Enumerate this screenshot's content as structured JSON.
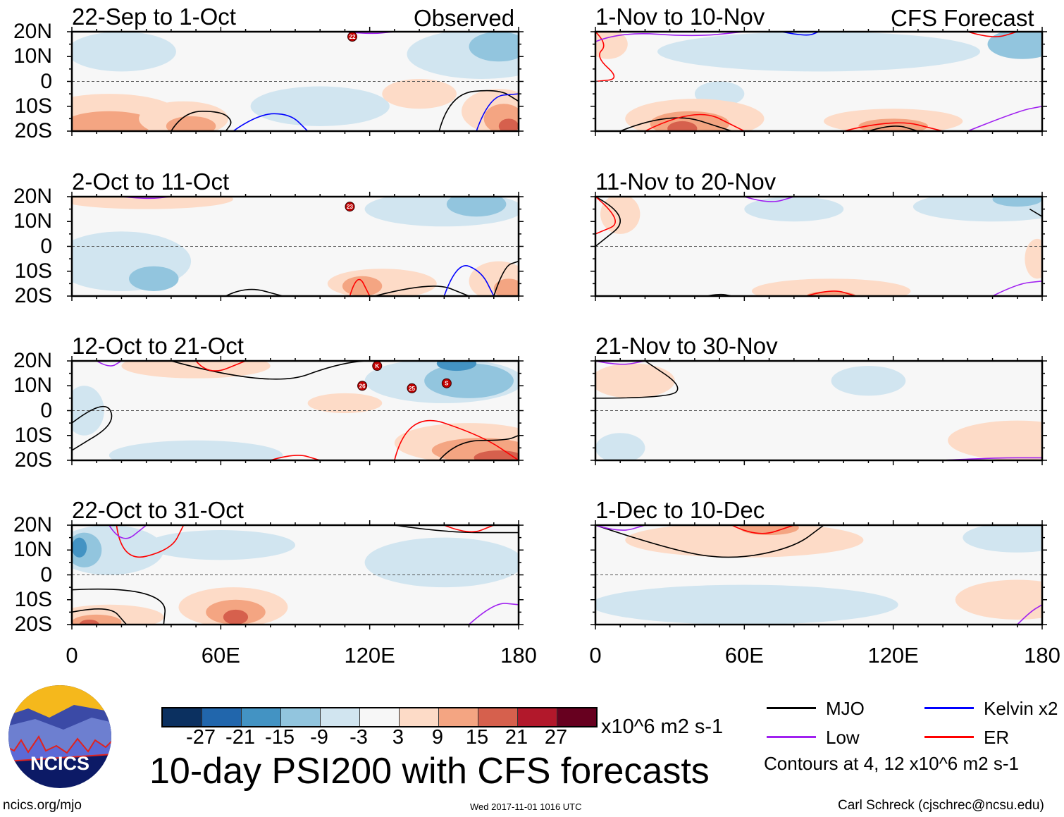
{
  "chart_data": {
    "type": "heatmap",
    "title": "10-day PSI200 with CFS forecasts",
    "units": "x10^6 m2 s-1",
    "column_headers": [
      "Observed",
      "CFS Forecast"
    ],
    "lat_ticks": [
      "20N",
      "10N",
      "0",
      "10S",
      "20S"
    ],
    "lon_ticks": [
      "0",
      "60E",
      "120E",
      "180"
    ],
    "lon_range": [
      0,
      180
    ],
    "lat_range": [
      -20,
      20
    ],
    "panels": [
      {
        "title": "22-Sep to 1-Oct",
        "column": "Observed",
        "storms": [
          {
            "label": "22",
            "lon": 113,
            "lat": 18
          }
        ]
      },
      {
        "title": "2-Oct to 11-Oct",
        "column": "Observed",
        "storms": [
          {
            "label": "23",
            "lon": 112,
            "lat": 16
          }
        ]
      },
      {
        "title": "12-Oct to 21-Oct",
        "column": "Observed",
        "storms": [
          {
            "label": "K",
            "lon": 123,
            "lat": 18
          },
          {
            "label": "26",
            "lon": 117,
            "lat": 10
          },
          {
            "label": "25",
            "lon": 137,
            "lat": 9
          },
          {
            "label": "S",
            "lon": 151,
            "lat": 11
          }
        ]
      },
      {
        "title": "22-Oct to 31-Oct",
        "column": "Observed",
        "storms": []
      },
      {
        "title": "1-Nov to 10-Nov",
        "column": "CFS Forecast",
        "storms": []
      },
      {
        "title": "11-Nov to 20-Nov",
        "column": "CFS Forecast",
        "storms": []
      },
      {
        "title": "21-Nov to 30-Nov",
        "column": "CFS Forecast",
        "storms": []
      },
      {
        "title": "1-Dec to 10-Dec",
        "column": "CFS Forecast",
        "storms": []
      }
    ],
    "colorbar": {
      "labels": [
        "-27",
        "-21",
        "-15",
        "-9",
        "-3",
        "3",
        "9",
        "15",
        "21",
        "27"
      ],
      "colors": [
        "#0b3060",
        "#2166ac",
        "#4393c3",
        "#92c5de",
        "#d1e5f0",
        "#f7f7f7",
        "#fddbc7",
        "#f4a582",
        "#d6604d",
        "#b2182b",
        "#67001f"
      ]
    },
    "legend": [
      {
        "label": "MJO",
        "color": "#000000"
      },
      {
        "label": "Kelvin x2",
        "color": "#0000ff"
      },
      {
        "label": "Low",
        "color": "#a020f0"
      },
      {
        "label": "ER",
        "color": "#ff0000"
      }
    ],
    "contour_note": "Contours at 4, 12 x10^6 m2 s-1"
  },
  "logo": {
    "text": "NCICS"
  },
  "footer": {
    "url": "ncics.org/mjo",
    "timestamp": "Wed 2017-11-01 1016 UTC",
    "author": "Carl Schreck (cjschrec@ncsu.edu)"
  }
}
